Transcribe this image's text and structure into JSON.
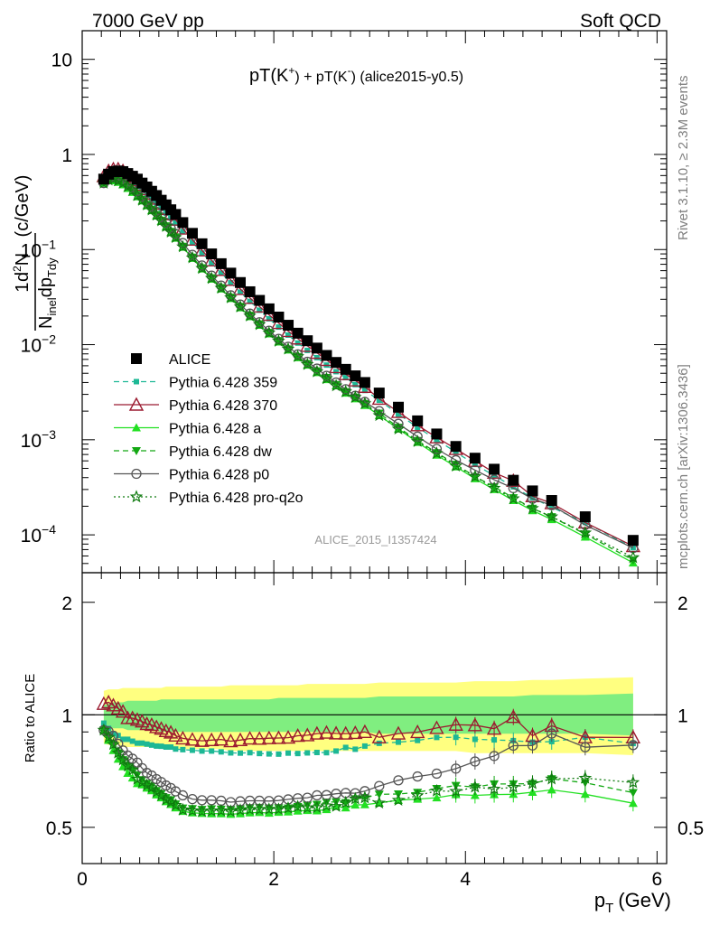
{
  "header": {
    "left": "7000 GeV pp",
    "right": "Soft QCD"
  },
  "side_labels": {
    "rivet": "Rivet 3.1.10, ≥ 2.3M events",
    "mcplots": "mcplots.cern.ch [arXiv:1306.3436]"
  },
  "analysis_id": "ALICE_2015_I1357424",
  "colors": {
    "ALICE": "#000000",
    "Pythia 6.428 359": "#1db895",
    "Pythia 6.428 370": "#9b1b30",
    "Pythia 6.428 a": "#22e022",
    "Pythia 6.428 dw": "#13a813",
    "Pythia 6.428 p0": "#555555",
    "Pythia 6.428 pro-q2o": "#0f7a0f",
    "band_outer": "#ffff80",
    "band_inner": "#80ee80"
  },
  "chart_data": [
    {
      "type": "scatter",
      "title_main": "pT(K",
      "title_sup1": "+",
      "title_mid": ") + pT(K",
      "title_sup2": "-",
      "title_end": ") (alice2015-y0.5)",
      "ylabel_pre": "1",
      "ylabel_num": "d",
      "ylabel_num_sup": "2",
      "ylabel_num_end": "N",
      "ylabel_den": "N",
      "ylabel_den_sub": "inel",
      "ylabel_den_mid": "dp",
      "ylabel_den_sub2": "T",
      "ylabel_den_end": "dy",
      "ylabel_units": "(c/GeV)",
      "xlim": [
        0,
        6.1
      ],
      "ylim": [
        4e-05,
        20
      ],
      "yscale": "log",
      "yticks": [
        {
          "value": 10,
          "label": "10"
        },
        {
          "value": 1,
          "label": "1"
        },
        {
          "value": 0.1,
          "label": "10",
          "exp": "−1"
        },
        {
          "value": 0.01,
          "label": "10",
          "exp": "−2"
        },
        {
          "value": 0.001,
          "label": "10",
          "exp": "−3"
        },
        {
          "value": 0.0001,
          "label": "10",
          "exp": "−4"
        }
      ],
      "legend_position": "lower-left",
      "x": [
        0.225,
        0.275,
        0.325,
        0.375,
        0.425,
        0.475,
        0.525,
        0.575,
        0.625,
        0.675,
        0.725,
        0.775,
        0.825,
        0.875,
        0.925,
        0.975,
        1.05,
        1.15,
        1.25,
        1.35,
        1.45,
        1.55,
        1.65,
        1.75,
        1.85,
        1.95,
        2.05,
        2.15,
        2.25,
        2.35,
        2.45,
        2.55,
        2.65,
        2.75,
        2.85,
        2.95,
        3.1,
        3.3,
        3.5,
        3.7,
        3.9,
        4.1,
        4.3,
        4.5,
        4.7,
        4.9,
        5.25,
        5.75
      ],
      "series": [
        {
          "name": "ALICE",
          "marker": "square-filled",
          "line": "none",
          "values": [
            0.55,
            0.62,
            0.66,
            0.67,
            0.66,
            0.63,
            0.59,
            0.55,
            0.5,
            0.455,
            0.41,
            0.37,
            0.33,
            0.295,
            0.262,
            0.234,
            0.192,
            0.148,
            0.115,
            0.09,
            0.071,
            0.0565,
            0.045,
            0.036,
            0.0292,
            0.0238,
            0.0195,
            0.016,
            0.0132,
            0.011,
            0.0092,
            0.0077,
            0.0065,
            0.0055,
            0.0047,
            0.004,
            0.0031,
            0.0022,
            0.00158,
            0.00115,
            0.00085,
            0.00064,
            0.00049,
            0.000375,
            0.00029,
            0.00023,
            0.000155,
            8.75e-05
          ]
        },
        {
          "name": "Pythia 6.428 359",
          "marker": "square-small",
          "line": "dashed",
          "values": [
            0.52,
            0.57,
            0.59,
            0.59,
            0.57,
            0.54,
            0.5,
            0.46,
            0.42,
            0.38,
            0.34,
            0.305,
            0.272,
            0.242,
            0.215,
            0.19,
            0.155,
            0.119,
            0.092,
            0.072,
            0.0565,
            0.0447,
            0.0356,
            0.0285,
            0.023,
            0.0187,
            0.0153,
            0.0126,
            0.0104,
            0.0087,
            0.0073,
            0.0061,
            0.0052,
            0.0045,
            0.0038,
            0.0033,
            0.0026,
            0.00186,
            0.00135,
            0.001,
            0.00074,
            0.00055,
            0.00042,
            0.00032,
            0.000245,
            0.000195,
            0.000135,
            7.33e-05
          ]
        },
        {
          "name": "Pythia 6.428 370",
          "marker": "triangle-open",
          "line": "solid",
          "values": [
            0.59,
            0.67,
            0.7,
            0.7,
            0.67,
            0.62,
            0.58,
            0.535,
            0.48,
            0.43,
            0.385,
            0.343,
            0.303,
            0.267,
            0.235,
            0.206,
            0.166,
            0.127,
            0.098,
            0.077,
            0.061,
            0.048,
            0.0385,
            0.0311,
            0.0252,
            0.0206,
            0.0169,
            0.0139,
            0.0116,
            0.0097,
            0.0082,
            0.0069,
            0.0058,
            0.0049,
            0.0042,
            0.0036,
            0.0027,
            0.00196,
            0.00142,
            0.00106,
            0.0008,
            0.0006,
            0.00045,
            0.00037,
            0.000255,
            0.000215,
            0.000135,
            7.61e-05
          ]
        },
        {
          "name": "Pythia 6.428 a",
          "marker": "triangle-filled",
          "line": "solid",
          "values": [
            0.5,
            0.53,
            0.53,
            0.51,
            0.48,
            0.44,
            0.4,
            0.36,
            0.325,
            0.29,
            0.257,
            0.226,
            0.198,
            0.173,
            0.151,
            0.132,
            0.106,
            0.081,
            0.0627,
            0.049,
            0.0386,
            0.0306,
            0.0245,
            0.0197,
            0.016,
            0.013,
            0.0107,
            0.0088,
            0.0073,
            0.0061,
            0.0051,
            0.0043,
            0.0037,
            0.0031,
            0.0027,
            0.0023,
            0.0018,
            0.0013,
            0.00094,
            0.00069,
            0.00052,
            0.00039,
            0.0003,
            0.00023,
            0.00018,
            0.000145,
            9.5e-05,
            5.08e-05
          ]
        },
        {
          "name": "Pythia 6.428 dw",
          "marker": "triangle-down-filled",
          "line": "dashed",
          "values": [
            0.5,
            0.54,
            0.55,
            0.53,
            0.5,
            0.46,
            0.42,
            0.38,
            0.335,
            0.298,
            0.264,
            0.232,
            0.203,
            0.177,
            0.155,
            0.135,
            0.108,
            0.083,
            0.0642,
            0.0504,
            0.0397,
            0.0315,
            0.0252,
            0.0203,
            0.0165,
            0.0134,
            0.011,
            0.009,
            0.0075,
            0.0063,
            0.0053,
            0.0045,
            0.0038,
            0.0032,
            0.0028,
            0.0024,
            0.0019,
            0.00135,
            0.00098,
            0.00073,
            0.00055,
            0.00041,
            0.00032,
            0.000245,
            0.00019,
            0.000155,
            0.000102,
            5.42e-05
          ]
        },
        {
          "name": "Pythia 6.428 p0",
          "marker": "circle-open",
          "line": "solid",
          "values": [
            0.5,
            0.56,
            0.58,
            0.56,
            0.53,
            0.49,
            0.45,
            0.41,
            0.36,
            0.318,
            0.282,
            0.249,
            0.218,
            0.191,
            0.167,
            0.146,
            0.117,
            0.088,
            0.068,
            0.0532,
            0.0418,
            0.033,
            0.0264,
            0.0212,
            0.0172,
            0.014,
            0.0115,
            0.0095,
            0.0079,
            0.0066,
            0.0056,
            0.0047,
            0.004,
            0.0034,
            0.0029,
            0.0025,
            0.002,
            0.00147,
            0.00108,
            0.0008,
            0.00061,
            0.00048,
            0.00038,
            0.00031,
            0.00024,
            0.000205,
            0.000127,
            7.26e-05
          ]
        },
        {
          "name": "Pythia 6.428 pro-q2o",
          "marker": "star-open",
          "line": "dotted",
          "values": [
            0.5,
            0.54,
            0.55,
            0.53,
            0.5,
            0.46,
            0.42,
            0.37,
            0.33,
            0.295,
            0.262,
            0.23,
            0.201,
            0.175,
            0.153,
            0.134,
            0.107,
            0.082,
            0.0635,
            0.0498,
            0.0393,
            0.0312,
            0.025,
            0.0201,
            0.0163,
            0.0133,
            0.0109,
            0.009,
            0.0075,
            0.0062,
            0.0052,
            0.0044,
            0.0037,
            0.0032,
            0.0028,
            0.0024,
            0.0018,
            0.0013,
            0.00096,
            0.00072,
            0.00053,
            0.00041,
            0.00031,
            0.00024,
            0.00019,
            0.000155,
            0.000105,
            5.77e-05
          ]
        }
      ]
    },
    {
      "type": "line",
      "xlabel_main": "p",
      "xlabel_sub": "T",
      "xlabel_units": "(GeV)",
      "ylabel": "Ratio to ALICE",
      "xlim": [
        0,
        6.1
      ],
      "ylim": [
        0.4,
        2.4
      ],
      "yscale": "log",
      "xticks": [
        {
          "value": 0,
          "label": "0"
        },
        {
          "value": 2,
          "label": "2"
        },
        {
          "value": 4,
          "label": "4"
        },
        {
          "value": 6,
          "label": "6"
        }
      ],
      "yticks": [
        {
          "value": 2,
          "label": "2"
        },
        {
          "value": 1,
          "label": "1"
        },
        {
          "value": 0.5,
          "label": "0.5"
        }
      ],
      "band_outer_upper": [
        1.16,
        1.17,
        1.17,
        1.17,
        1.18,
        1.18,
        1.18,
        1.18,
        1.18,
        1.18,
        1.18,
        1.18,
        1.18,
        1.19,
        1.19,
        1.19,
        1.19,
        1.19,
        1.19,
        1.19,
        1.19,
        1.2,
        1.2,
        1.2,
        1.2,
        1.2,
        1.2,
        1.2,
        1.2,
        1.21,
        1.21,
        1.21,
        1.21,
        1.21,
        1.21,
        1.21,
        1.22,
        1.22,
        1.22,
        1.22,
        1.22,
        1.23,
        1.23,
        1.23,
        1.24,
        1.24,
        1.25,
        1.26
      ],
      "band_outer_lower": [
        0.84,
        0.83,
        0.83,
        0.83,
        0.82,
        0.82,
        0.82,
        0.82,
        0.82,
        0.82,
        0.82,
        0.82,
        0.82,
        0.81,
        0.81,
        0.81,
        0.81,
        0.81,
        0.81,
        0.81,
        0.81,
        0.8,
        0.8,
        0.8,
        0.8,
        0.8,
        0.8,
        0.8,
        0.8,
        0.8,
        0.8,
        0.8,
        0.8,
        0.8,
        0.8,
        0.8,
        0.8,
        0.8,
        0.8,
        0.8,
        0.8,
        0.79,
        0.79,
        0.79,
        0.79,
        0.79,
        0.79,
        0.78
      ],
      "band_inner_upper": [
        1.06,
        1.07,
        1.08,
        1.08,
        1.08,
        1.09,
        1.09,
        1.09,
        1.09,
        1.09,
        1.09,
        1.09,
        1.1,
        1.1,
        1.1,
        1.1,
        1.1,
        1.1,
        1.1,
        1.1,
        1.1,
        1.1,
        1.1,
        1.1,
        1.1,
        1.1,
        1.11,
        1.11,
        1.11,
        1.11,
        1.11,
        1.11,
        1.11,
        1.11,
        1.11,
        1.11,
        1.12,
        1.12,
        1.12,
        1.12,
        1.12,
        1.12,
        1.12,
        1.12,
        1.13,
        1.13,
        1.13,
        1.14
      ],
      "band_inner_lower": [
        0.94,
        0.93,
        0.92,
        0.92,
        0.92,
        0.91,
        0.91,
        0.91,
        0.91,
        0.91,
        0.91,
        0.91,
        0.9,
        0.9,
        0.9,
        0.9,
        0.9,
        0.9,
        0.9,
        0.9,
        0.9,
        0.9,
        0.9,
        0.9,
        0.9,
        0.9,
        0.9,
        0.9,
        0.9,
        0.9,
        0.9,
        0.9,
        0.9,
        0.9,
        0.9,
        0.9,
        0.89,
        0.89,
        0.89,
        0.89,
        0.89,
        0.89,
        0.89,
        0.89,
        0.89,
        0.89,
        0.89,
        0.88
      ],
      "series": [
        {
          "name": "Pythia 6.428 359",
          "values": [
            0.95,
            0.92,
            0.89,
            0.88,
            0.86,
            0.86,
            0.85,
            0.84,
            0.84,
            0.835,
            0.83,
            0.825,
            0.824,
            0.82,
            0.82,
            0.81,
            0.807,
            0.804,
            0.8,
            0.8,
            0.796,
            0.791,
            0.79,
            0.792,
            0.788,
            0.786,
            0.785,
            0.79,
            0.788,
            0.791,
            0.793,
            0.792,
            0.8,
            0.818,
            0.809,
            0.825,
            0.839,
            0.845,
            0.854,
            0.87,
            0.871,
            0.86,
            0.857,
            0.853,
            0.845,
            0.848,
            0.871,
            0.838
          ]
        },
        {
          "name": "Pythia 6.428 370",
          "values": [
            1.07,
            1.08,
            1.06,
            1.04,
            1.02,
            0.98,
            0.98,
            0.97,
            0.96,
            0.945,
            0.94,
            0.927,
            0.918,
            0.905,
            0.897,
            0.88,
            0.865,
            0.858,
            0.852,
            0.856,
            0.859,
            0.85,
            0.856,
            0.864,
            0.863,
            0.866,
            0.867,
            0.869,
            0.879,
            0.882,
            0.891,
            0.896,
            0.892,
            0.891,
            0.894,
            0.9,
            0.871,
            0.891,
            0.899,
            0.922,
            0.941,
            0.938,
            0.918,
            0.987,
            0.879,
            0.935,
            0.871,
            0.87
          ]
        },
        {
          "name": "Pythia 6.428 a",
          "values": [
            0.91,
            0.855,
            0.803,
            0.761,
            0.727,
            0.698,
            0.678,
            0.655,
            0.65,
            0.637,
            0.627,
            0.611,
            0.6,
            0.586,
            0.576,
            0.564,
            0.552,
            0.547,
            0.545,
            0.544,
            0.544,
            0.542,
            0.544,
            0.547,
            0.548,
            0.546,
            0.549,
            0.55,
            0.553,
            0.555,
            0.554,
            0.558,
            0.569,
            0.564,
            0.574,
            0.575,
            0.581,
            0.591,
            0.595,
            0.6,
            0.612,
            0.609,
            0.612,
            0.613,
            0.621,
            0.63,
            0.613,
            0.58
          ]
        },
        {
          "name": "Pythia 6.428 dw",
          "values": [
            0.91,
            0.871,
            0.833,
            0.791,
            0.758,
            0.73,
            0.712,
            0.691,
            0.67,
            0.655,
            0.644,
            0.627,
            0.615,
            0.6,
            0.592,
            0.577,
            0.563,
            0.561,
            0.558,
            0.56,
            0.559,
            0.558,
            0.56,
            0.564,
            0.565,
            0.563,
            0.564,
            0.563,
            0.568,
            0.573,
            0.576,
            0.584,
            0.585,
            0.582,
            0.596,
            0.6,
            0.613,
            0.614,
            0.62,
            0.635,
            0.647,
            0.641,
            0.653,
            0.653,
            0.655,
            0.674,
            0.658,
            0.619
          ]
        },
        {
          "name": "Pythia 6.428 p0",
          "values": [
            0.91,
            0.903,
            0.879,
            0.836,
            0.803,
            0.778,
            0.763,
            0.745,
            0.72,
            0.699,
            0.688,
            0.673,
            0.661,
            0.647,
            0.637,
            0.624,
            0.609,
            0.595,
            0.591,
            0.591,
            0.589,
            0.584,
            0.587,
            0.589,
            0.589,
            0.588,
            0.59,
            0.594,
            0.598,
            0.6,
            0.609,
            0.61,
            0.615,
            0.618,
            0.617,
            0.625,
            0.645,
            0.668,
            0.684,
            0.696,
            0.718,
            0.75,
            0.776,
            0.827,
            0.828,
            0.891,
            0.819,
            0.83
          ]
        },
        {
          "name": "Pythia 6.428 pro-q2o",
          "values": [
            0.91,
            0.871,
            0.833,
            0.791,
            0.758,
            0.73,
            0.712,
            0.673,
            0.66,
            0.648,
            0.639,
            0.622,
            0.609,
            0.593,
            0.584,
            0.573,
            0.557,
            0.554,
            0.552,
            0.553,
            0.554,
            0.552,
            0.556,
            0.558,
            0.558,
            0.559,
            0.559,
            0.563,
            0.568,
            0.564,
            0.565,
            0.571,
            0.569,
            0.582,
            0.596,
            0.6,
            0.581,
            0.591,
            0.608,
            0.626,
            0.624,
            0.641,
            0.633,
            0.64,
            0.655,
            0.674,
            0.677,
            0.659
          ]
        }
      ]
    }
  ]
}
